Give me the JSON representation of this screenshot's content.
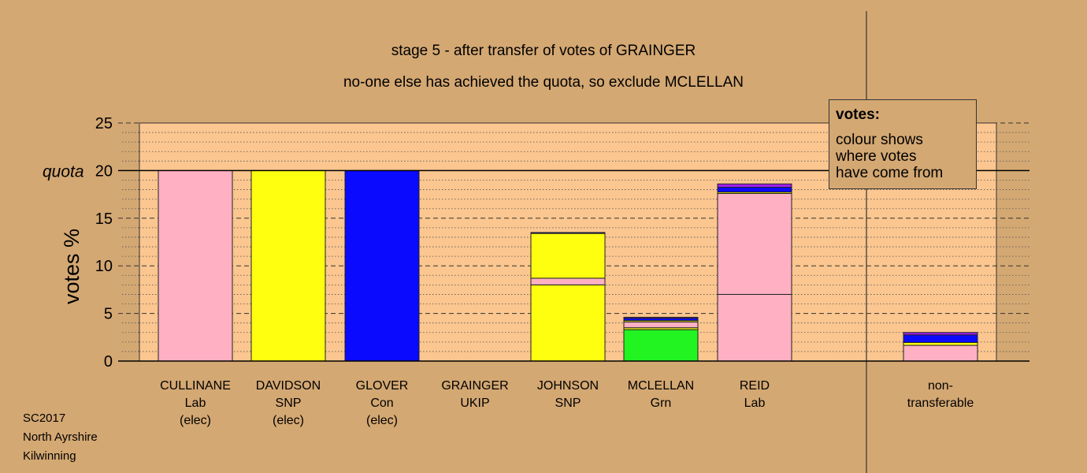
{
  "title_line1": "stage 5 - after transfer of votes of GRAINGER",
  "title_line2": "no-one else has achieved the quota, so exclude MCLELLAN",
  "legend": {
    "heading": "votes:",
    "lines": [
      "colour shows",
      "where votes",
      "have come from"
    ]
  },
  "footer": {
    "line1": "SC2017",
    "line2": "North Ayrshire",
    "line3": "Kilwinning"
  },
  "colors": {
    "background": "#d4a873",
    "plot_area": "#fbc68f",
    "Lab": "#ffb0c2",
    "SNP": "#ffff10",
    "Con": "#0a0aff",
    "Grn": "#22f422",
    "UKIP": "#a020f0"
  },
  "chart_data": {
    "type": "bar",
    "stacked": true,
    "ylabel": "votes %",
    "ylim": [
      0,
      25
    ],
    "yticks": [
      0,
      5,
      10,
      15,
      20,
      25
    ],
    "quota": 20,
    "quota_label": "quota",
    "grid": true,
    "categories": [
      {
        "name": "CULLINANE",
        "party": "Lab",
        "note": "(elec)"
      },
      {
        "name": "DAVIDSON",
        "party": "SNP",
        "note": "(elec)"
      },
      {
        "name": "GLOVER",
        "party": "Con",
        "note": "(elec)"
      },
      {
        "name": "GRAINGER",
        "party": "UKIP",
        "note": ""
      },
      {
        "name": "JOHNSON",
        "party": "SNP",
        "note": ""
      },
      {
        "name": "MCLELLAN",
        "party": "Grn",
        "note": ""
      },
      {
        "name": "REID",
        "party": "Lab",
        "note": ""
      },
      {
        "name": "non-",
        "party": "transferable",
        "note": ""
      }
    ],
    "stacks": [
      [
        {
          "source": "Lab",
          "value": 20
        }
      ],
      [
        {
          "source": "SNP",
          "value": 20
        }
      ],
      [
        {
          "source": "Con",
          "value": 20
        }
      ],
      [],
      [
        {
          "source": "SNP",
          "value": 8
        },
        {
          "source": "Lab",
          "value": 0.7
        },
        {
          "source": "SNP",
          "value": 4.7
        },
        {
          "source": "Con",
          "value": 0.1
        }
      ],
      [
        {
          "source": "Grn",
          "value": 3.3
        },
        {
          "source": "SNP",
          "value": 0.2
        },
        {
          "source": "Lab",
          "value": 0.6
        },
        {
          "source": "SNP",
          "value": 0.15
        },
        {
          "source": "Con",
          "value": 0.25
        },
        {
          "source": "UKIP",
          "value": 0.1
        }
      ],
      [
        {
          "source": "Lab",
          "value": 7
        },
        {
          "source": "Lab",
          "value": 10.6
        },
        {
          "source": "SNP",
          "value": 0.15
        },
        {
          "source": "Con",
          "value": 0.5
        },
        {
          "source": "UKIP",
          "value": 0.35
        }
      ],
      [
        {
          "source": "Lab",
          "value": 1.65
        },
        {
          "source": "SNP",
          "value": 0.3
        },
        {
          "source": "Con",
          "value": 0.8
        },
        {
          "source": "UKIP",
          "value": 0.25
        }
      ]
    ]
  }
}
